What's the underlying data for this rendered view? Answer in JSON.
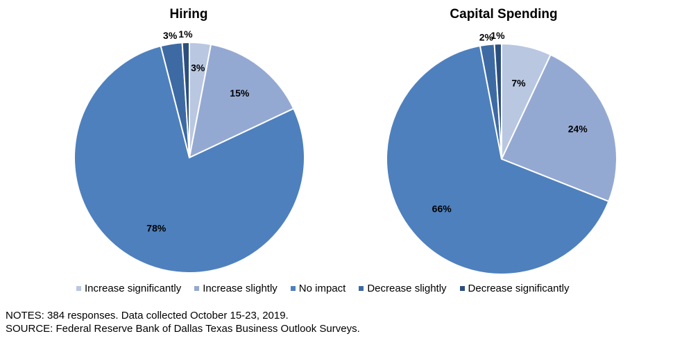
{
  "colors": {
    "Increase significantly": "#b9c7e1",
    "Increase slightly": "#94a9d2",
    "No impact": "#4e80bd",
    "Decrease slightly": "#3d6aa3",
    "Decrease significantly": "#2c4f7e"
  },
  "chart_data": [
    {
      "type": "pie",
      "title": "Hiring",
      "categories": [
        "Increase significantly",
        "Increase slightly",
        "No impact",
        "Decrease slightly",
        "Decrease significantly"
      ],
      "values": [
        3,
        15,
        78,
        3,
        1
      ],
      "labels": [
        "3%",
        "15%",
        "78%",
        "3%",
        "1%"
      ]
    },
    {
      "type": "pie",
      "title": "Capital Spending",
      "categories": [
        "Increase significantly",
        "Increase slightly",
        "No impact",
        "Decrease slightly",
        "Decrease significantly"
      ],
      "values": [
        7,
        24,
        66,
        2,
        1
      ],
      "labels": [
        "7%",
        "24%",
        "66%",
        "2%",
        "1%"
      ]
    }
  ],
  "legend": {
    "items": [
      "Increase significantly",
      "Increase slightly",
      "No impact",
      "Decrease slightly",
      "Decrease significantly"
    ],
    "placement": "bottom"
  },
  "notes": {
    "line1": "NOTES: 384 responses. Data collected October 15-23, 2019.",
    "line2": "SOURCE: Federal Reserve Bank of Dallas Texas Business Outlook Surveys."
  }
}
